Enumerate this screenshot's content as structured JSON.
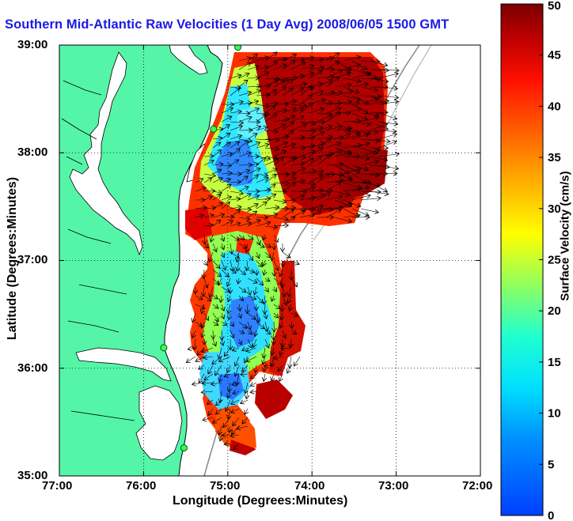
{
  "title": "Southern Mid-Atlantic Raw Velocities (1 Day Avg) 2008/06/05 1500 GMT",
  "xlabel": "Longitude (Degrees:Minutes)",
  "ylabel": "Latitude (Degrees:Minutes)",
  "x_ticks": [
    "77:00",
    "76:00",
    "75:00",
    "74:00",
    "73:00",
    "72:00"
  ],
  "y_ticks": [
    "39:00",
    "38:00",
    "37:00",
    "36:00",
    "35:00"
  ],
  "colorbar": {
    "label": "Surface Velocity (cm/s)",
    "min": 0,
    "max": 50,
    "ticks": [
      "0",
      "5",
      "10",
      "15",
      "20",
      "25",
      "30",
      "35",
      "40",
      "45",
      "50"
    ],
    "colormap": "jet"
  },
  "map": {
    "lon_range": [
      -77,
      -72
    ],
    "lat_range": [
      35,
      39
    ],
    "grid": "dotted",
    "land_color": "#55f5a8",
    "coast_color": "#000000"
  },
  "station_markers": [
    {
      "lon": -74.88,
      "lat": 38.98
    },
    {
      "lon": -75.17,
      "lat": 38.22
    },
    {
      "lon": -75.76,
      "lat": 36.19
    },
    {
      "lon": -75.52,
      "lat": 35.26
    }
  ]
}
